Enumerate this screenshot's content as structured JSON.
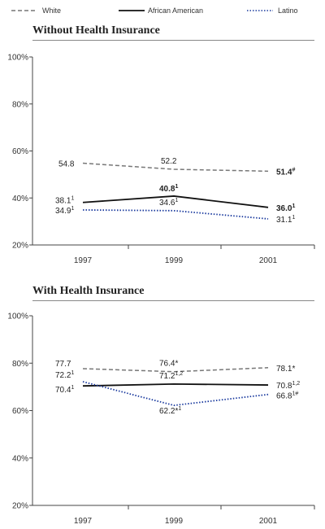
{
  "legend": [
    {
      "name": "White",
      "color": "#777777",
      "dash": "dashed"
    },
    {
      "name": "African American",
      "color": "#111111",
      "dash": "solid"
    },
    {
      "name": "Latino",
      "color": "#1a3a9e",
      "dash": "dotted"
    }
  ],
  "chart_data": [
    {
      "type": "line",
      "title": "Without Health Insurance",
      "categories": [
        "1997",
        "1999",
        "2001"
      ],
      "ylim": [
        20,
        100
      ],
      "yticks": [
        "20%",
        "40%",
        "60%",
        "80%",
        "100%"
      ],
      "ytick_values": [
        20,
        40,
        60,
        80,
        100
      ],
      "grid": false,
      "legend": "top",
      "series": [
        {
          "name": "White",
          "values": [
            54.8,
            52.2,
            51.4
          ],
          "labels": [
            "54.8",
            "52.2",
            "51.4"
          ],
          "marks": [
            "",
            "",
            "#"
          ],
          "bold": [
            false,
            false,
            true
          ]
        },
        {
          "name": "African American",
          "values": [
            38.1,
            40.8,
            36.0
          ],
          "labels": [
            "38.1",
            "40.8",
            "36.0"
          ],
          "marks": [
            "1",
            "1",
            "1"
          ],
          "bold": [
            false,
            true,
            true
          ]
        },
        {
          "name": "Latino",
          "values": [
            34.9,
            34.6,
            31.1
          ],
          "labels": [
            "34.9",
            "34.6",
            "31.1"
          ],
          "marks": [
            "1",
            "1",
            "1"
          ],
          "bold": [
            false,
            false,
            false
          ]
        }
      ]
    },
    {
      "type": "line",
      "title": "With Health Insurance",
      "categories": [
        "1997",
        "1999",
        "2001"
      ],
      "ylim": [
        20,
        100
      ],
      "yticks": [
        "20%",
        "40%",
        "60%",
        "80%",
        "100%"
      ],
      "ytick_values": [
        20,
        40,
        60,
        80,
        100
      ],
      "grid": false,
      "legend": "top",
      "series": [
        {
          "name": "White",
          "values": [
            77.7,
            76.4,
            78.1
          ],
          "labels": [
            "77.7",
            "76.4*",
            "78.1*"
          ],
          "marks": [
            "",
            "",
            ""
          ],
          "bold": [
            false,
            false,
            false
          ]
        },
        {
          "name": "African American",
          "values": [
            70.4,
            71.2,
            70.8
          ],
          "labels": [
            "70.4",
            "71.2",
            "70.8"
          ],
          "marks": [
            "1",
            "1,2",
            "1,2"
          ],
          "bold": [
            false,
            false,
            false
          ]
        },
        {
          "name": "Latino",
          "values": [
            72.2,
            62.2,
            66.8
          ],
          "labels": [
            "72.2",
            "62.2*",
            "66.8"
          ],
          "marks": [
            "1",
            "1",
            "1#"
          ],
          "bold": [
            false,
            false,
            false
          ]
        }
      ]
    }
  ]
}
